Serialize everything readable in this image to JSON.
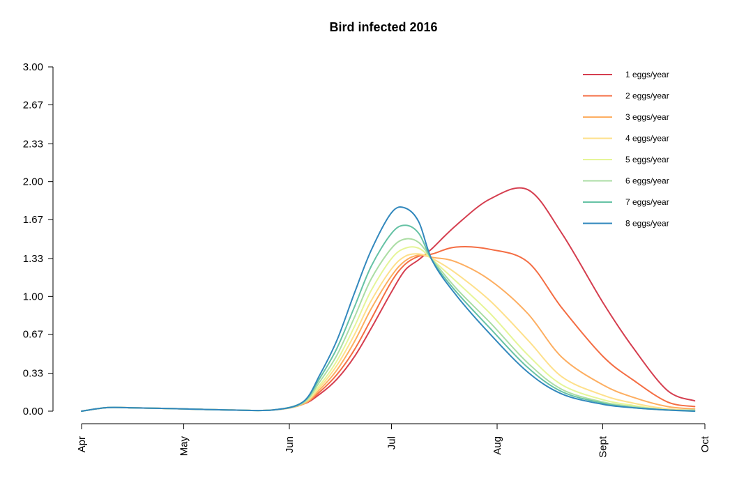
{
  "chart_data": {
    "type": "line",
    "title": "Bird infected 2016",
    "xlabel": "",
    "ylabel": "",
    "ylim": [
      0,
      3
    ],
    "xlim": [
      "2016-04-01",
      "2016-10-01"
    ],
    "y_ticks": [
      "0.00",
      "0.33",
      "0.67",
      "1.00",
      "1.33",
      "1.67",
      "2.00",
      "2.33",
      "2.67",
      "3.00"
    ],
    "x_ticks": [
      {
        "label": "Apr",
        "date": "2016-04-01"
      },
      {
        "label": "May",
        "date": "2016-05-01"
      },
      {
        "label": "Jun",
        "date": "2016-06-01"
      },
      {
        "label": "Jul",
        "date": "2016-07-01"
      },
      {
        "label": "Aug",
        "date": "2016-08-01"
      },
      {
        "label": "Sept",
        "date": "2016-09-01"
      },
      {
        "label": "Oct",
        "date": "2016-10-01"
      }
    ],
    "grid": false,
    "legend_position": "top-right",
    "x": [
      "2016-04-01",
      "2016-04-08",
      "2016-04-15",
      "2016-05-01",
      "2016-05-15",
      "2016-05-27",
      "2016-06-05",
      "2016-06-10",
      "2016-06-15",
      "2016-06-20",
      "2016-06-25",
      "2016-07-01",
      "2016-07-05",
      "2016-07-09",
      "2016-07-13",
      "2016-07-20",
      "2016-07-30",
      "2016-08-10",
      "2016-08-20",
      "2016-09-01",
      "2016-09-10",
      "2016-09-20",
      "2016-09-28"
    ],
    "series": [
      {
        "name": "1 eggs/year",
        "color": "#d53e4f",
        "values": [
          0,
          0.03,
          0.03,
          0.02,
          0.01,
          0.01,
          0.06,
          0.15,
          0.28,
          0.47,
          0.72,
          1.04,
          1.23,
          1.32,
          1.42,
          1.62,
          1.85,
          1.93,
          1.55,
          0.95,
          0.55,
          0.18,
          0.09
        ]
      },
      {
        "name": "2 eggs/year",
        "color": "#f46d43",
        "values": [
          0,
          0.03,
          0.03,
          0.02,
          0.01,
          0.01,
          0.06,
          0.17,
          0.32,
          0.53,
          0.8,
          1.13,
          1.28,
          1.35,
          1.37,
          1.43,
          1.41,
          1.3,
          0.9,
          0.48,
          0.27,
          0.08,
          0.04
        ]
      },
      {
        "name": "3 eggs/year",
        "color": "#fdae61",
        "values": [
          0,
          0.03,
          0.03,
          0.02,
          0.01,
          0.01,
          0.06,
          0.19,
          0.36,
          0.6,
          0.89,
          1.18,
          1.31,
          1.36,
          1.34,
          1.3,
          1.14,
          0.85,
          0.47,
          0.23,
          0.12,
          0.04,
          0.02
        ]
      },
      {
        "name": "4 eggs/year",
        "color": "#fee08b",
        "values": [
          0,
          0.03,
          0.03,
          0.02,
          0.01,
          0.01,
          0.07,
          0.21,
          0.4,
          0.66,
          0.96,
          1.24,
          1.35,
          1.37,
          1.33,
          1.2,
          0.96,
          0.62,
          0.3,
          0.14,
          0.07,
          0.02,
          0.01
        ]
      },
      {
        "name": "5 eggs/year",
        "color": "#e6f598",
        "values": [
          0,
          0.03,
          0.03,
          0.02,
          0.01,
          0.01,
          0.07,
          0.23,
          0.44,
          0.73,
          1.05,
          1.33,
          1.42,
          1.42,
          1.32,
          1.13,
          0.85,
          0.49,
          0.23,
          0.1,
          0.05,
          0.01,
          0.01
        ]
      },
      {
        "name": "6 eggs/year",
        "color": "#abdda4",
        "values": [
          0,
          0.03,
          0.03,
          0.02,
          0.01,
          0.01,
          0.07,
          0.26,
          0.49,
          0.81,
          1.15,
          1.42,
          1.5,
          1.47,
          1.32,
          1.07,
          0.77,
          0.42,
          0.19,
          0.08,
          0.04,
          0.01,
          0.01
        ]
      },
      {
        "name": "7 eggs/year",
        "color": "#66c2a5",
        "values": [
          0,
          0.03,
          0.03,
          0.02,
          0.01,
          0.01,
          0.08,
          0.29,
          0.55,
          0.9,
          1.26,
          1.55,
          1.62,
          1.55,
          1.31,
          1.04,
          0.72,
          0.38,
          0.17,
          0.07,
          0.03,
          0.01,
          0.0
        ]
      },
      {
        "name": "8 eggs/year",
        "color": "#3288bd",
        "values": [
          0,
          0.03,
          0.03,
          0.02,
          0.01,
          0.01,
          0.08,
          0.32,
          0.62,
          1.02,
          1.4,
          1.73,
          1.77,
          1.65,
          1.31,
          1.01,
          0.67,
          0.34,
          0.15,
          0.06,
          0.03,
          0.01,
          0.0
        ]
      }
    ]
  }
}
